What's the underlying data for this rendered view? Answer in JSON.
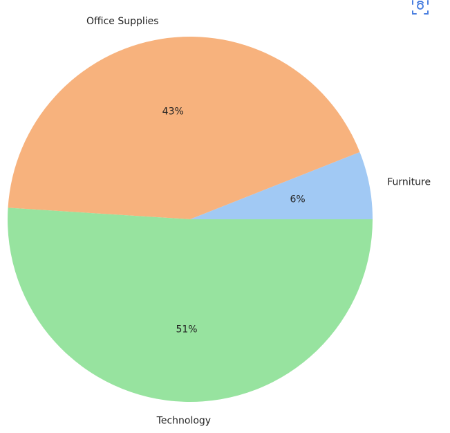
{
  "chart_data": {
    "type": "pie",
    "title": "",
    "categories": [
      "Furniture",
      "Office Supplies",
      "Technology"
    ],
    "values": [
      6,
      43,
      51
    ],
    "labels": [
      "6%",
      "43%",
      "51%"
    ],
    "colors": [
      "#a1c9f4",
      "#f7b27d",
      "#97e39f"
    ],
    "start_angle": 0,
    "direction": "counterclockwise"
  },
  "toolbar": {
    "icon": "screenshot-capture-icon",
    "color": "#4a7fe0"
  }
}
